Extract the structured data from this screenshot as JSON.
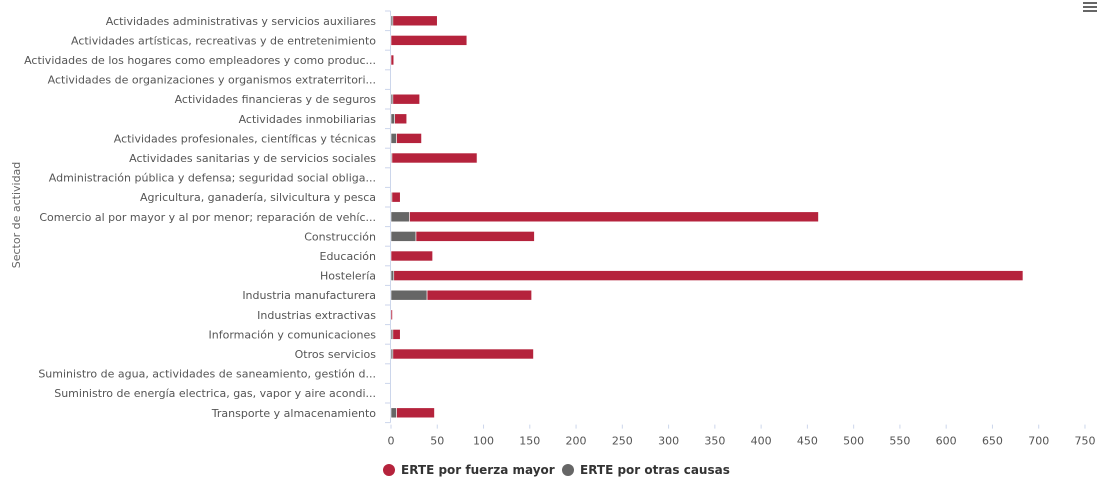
{
  "chart_data": {
    "type": "bar",
    "orientation": "horizontal",
    "stacked": true,
    "ylabel": "Sector de actividad",
    "xlabel": "",
    "xlim": [
      0,
      750
    ],
    "x_ticks": [
      0,
      50,
      100,
      150,
      200,
      250,
      300,
      350,
      400,
      450,
      500,
      550,
      600,
      650,
      700,
      750
    ],
    "grid": false,
    "legend_position": "bottom-center",
    "categories": [
      "Actividades administrativas y servicios auxiliares",
      "Actividades artísticas, recreativas y de entretenimiento",
      "Actividades de los hogares como empleadores y como produc...",
      "Actividades de organizaciones y organismos extraterritori...",
      "Actividades financieras y de seguros",
      "Actividades inmobiliarias",
      "Actividades profesionales, científicas y técnicas",
      "Actividades sanitarias y de servicios sociales",
      "Administración pública y defensa; seguridad social obligа...",
      "Agricultura, ganadería, silvicultura y pesca",
      "Comercio al por mayor y al por menor; reparación de vehíc...",
      "Construcción",
      "Educación",
      "Hostelería",
      "Industria manufacturera",
      "Industrias extractivas",
      "Información y comunicaciones",
      "Otros servicios",
      "Suministro de agua, actividades de saneamiento, gestión d...",
      "Suministro de energía electrica, gas, vapor y aire acondi...",
      "Transporte y almacenamiento"
    ],
    "series": [
      {
        "name": "ERTE por otras causas",
        "color": "#666666",
        "values": [
          2,
          0,
          0,
          0,
          2,
          4,
          6,
          1,
          0,
          1,
          20,
          27,
          0,
          3,
          39,
          0,
          2,
          2,
          0,
          0,
          6
        ]
      },
      {
        "name": "ERTE por fuerza mayor",
        "color": "#b5233c",
        "values": [
          48,
          82,
          3,
          0,
          29,
          13,
          27,
          92,
          0,
          9,
          442,
          128,
          45,
          680,
          113,
          1,
          8,
          152,
          0,
          0,
          41
        ]
      }
    ],
    "legend": [
      {
        "name": "ERTE por fuerza mayor",
        "color": "#b5233c"
      },
      {
        "name": "ERTE por otras causas",
        "color": "#666666"
      }
    ]
  },
  "menu": {
    "icon": "hamburger-menu-icon"
  }
}
